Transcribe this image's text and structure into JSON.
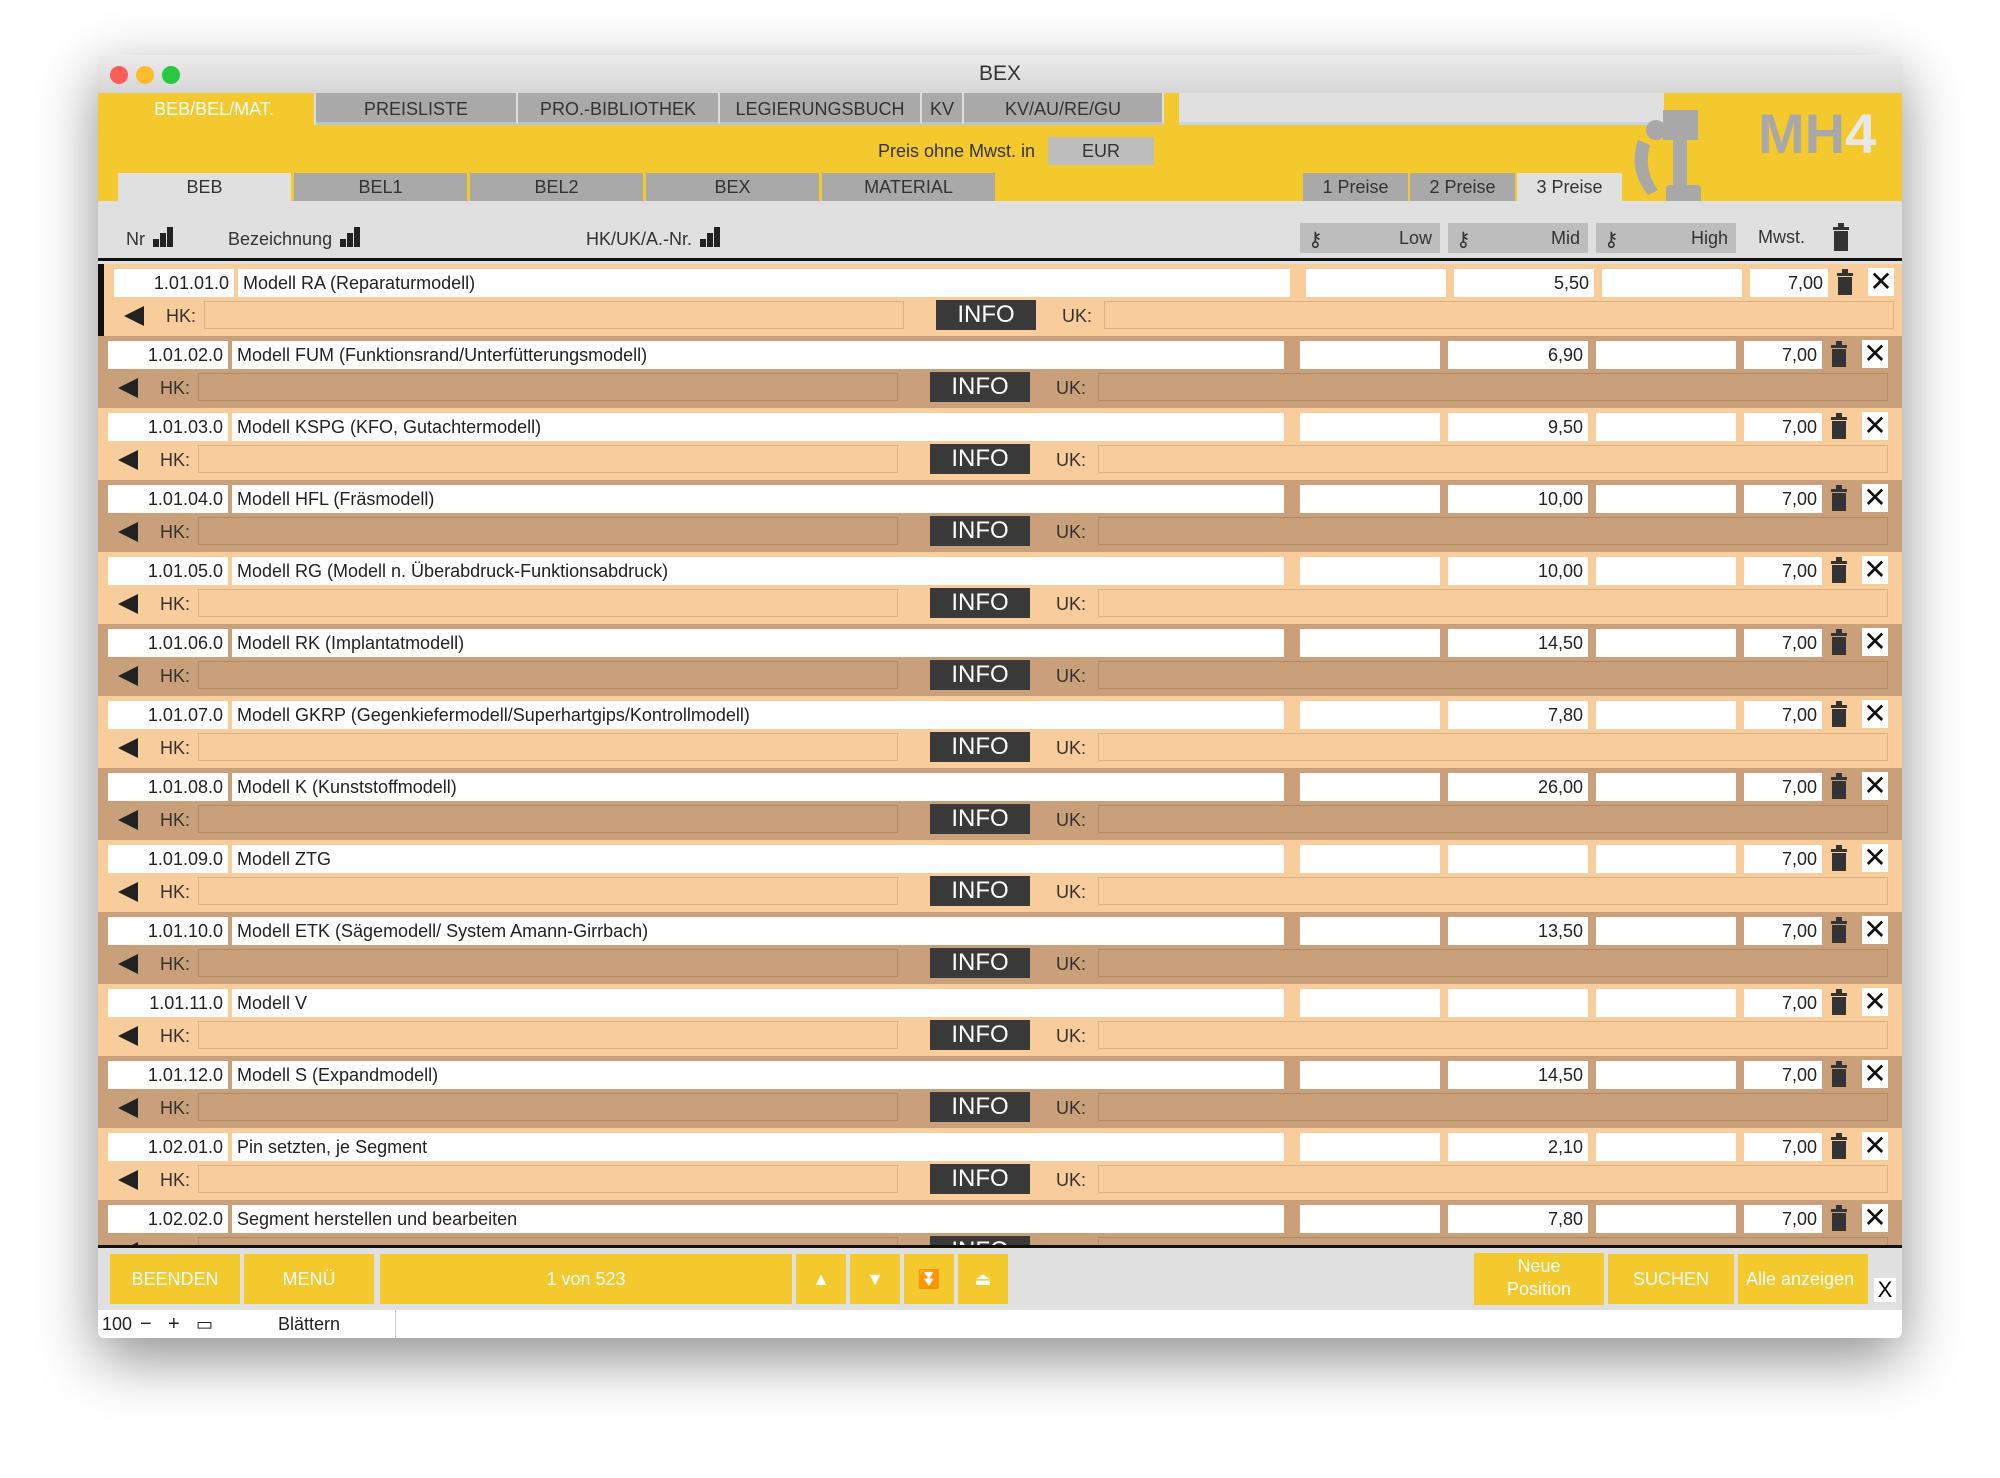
{
  "window": {
    "title": "BEX"
  },
  "top_tabs": [
    {
      "label": "BEB/BEL/MAT.",
      "active": true
    },
    {
      "label": "PREISLISTE"
    },
    {
      "label": "PRO.-BIBLIOTHEK"
    },
    {
      "label": "LEGIERUNGSBUCH"
    },
    {
      "label": "KV"
    },
    {
      "label": "KV/AU/RE/GU"
    }
  ],
  "currency": {
    "label": "Preis ohne Mwst. in",
    "value": "EUR"
  },
  "sub_tabs": [
    {
      "label": "BEB",
      "active": true
    },
    {
      "label": "BEL1"
    },
    {
      "label": "BEL2"
    },
    {
      "label": "BEX"
    },
    {
      "label": "MATERIAL"
    }
  ],
  "price_tabs": [
    {
      "label": "1 Preise"
    },
    {
      "label": "2 Preise"
    },
    {
      "label": "3 Preise",
      "active": true
    }
  ],
  "logo": "MH4",
  "header": {
    "nr": "Nr",
    "bezeichnung": "Bezeichnung",
    "hk": "HK/UK/A.-Nr.",
    "low": "Low",
    "mid": "Mid",
    "high": "High",
    "mwst": "Mwst."
  },
  "row_labels": {
    "hk": "HK:",
    "uk": "UK:",
    "info": "INFO"
  },
  "colors": {
    "accent": "#f3c92e",
    "row_odd": "#f8cc9b",
    "row_even": "#c9a07a"
  },
  "rows": [
    {
      "nr": "1.01.01.0",
      "name": "Modell RA (Reparaturmodell)",
      "low": "",
      "mid": "5,50",
      "high": "",
      "mwst": "7,00"
    },
    {
      "nr": "1.01.02.0",
      "name": "Modell FUM (Funktionsrand/Unterfütterungsmodell)",
      "low": "",
      "mid": "6,90",
      "high": "",
      "mwst": "7,00"
    },
    {
      "nr": "1.01.03.0",
      "name": "Modell KSPG (KFO, Gutachtermodell)",
      "low": "",
      "mid": "9,50",
      "high": "",
      "mwst": "7,00"
    },
    {
      "nr": "1.01.04.0",
      "name": "Modell HFL (Fräsmodell)",
      "low": "",
      "mid": "10,00",
      "high": "",
      "mwst": "7,00"
    },
    {
      "nr": "1.01.05.0",
      "name": "Modell RG (Modell n. Überabdruck-Funktionsabdruck)",
      "low": "",
      "mid": "10,00",
      "high": "",
      "mwst": "7,00"
    },
    {
      "nr": "1.01.06.0",
      "name": "Modell RK (Implantatmodell)",
      "low": "",
      "mid": "14,50",
      "high": "",
      "mwst": "7,00"
    },
    {
      "nr": "1.01.07.0",
      "name": "Modell GKRP (Gegenkiefermodell/Superhartgips/Kontrollmodell)",
      "low": "",
      "mid": "7,80",
      "high": "",
      "mwst": "7,00"
    },
    {
      "nr": "1.01.08.0",
      "name": "Modell K (Kunststoffmodell)",
      "low": "",
      "mid": "26,00",
      "high": "",
      "mwst": "7,00"
    },
    {
      "nr": "1.01.09.0",
      "name": "Modell ZTG",
      "low": "",
      "mid": "",
      "high": "",
      "mwst": "7,00"
    },
    {
      "nr": "1.01.10.0",
      "name": "Modell ETK (Sägemodell/ System Amann-Girrbach)",
      "low": "",
      "mid": "13,50",
      "high": "",
      "mwst": "7,00"
    },
    {
      "nr": "1.01.11.0",
      "name": "Modell V",
      "low": "",
      "mid": "",
      "high": "",
      "mwst": "7,00"
    },
    {
      "nr": "1.01.12.0",
      "name": "Modell S (Expandmodell)",
      "low": "",
      "mid": "14,50",
      "high": "",
      "mwst": "7,00"
    },
    {
      "nr": "1.02.01.0",
      "name": "Pin setzten, je Segment",
      "low": "",
      "mid": "2,10",
      "high": "",
      "mwst": "7,00"
    },
    {
      "nr": "1.02.02.0",
      "name": "Segment herstellen und bearbeiten",
      "low": "",
      "mid": "7,80",
      "high": "",
      "mwst": "7,00"
    }
  ],
  "bottom": {
    "beenden": "BEENDEN",
    "menu": "MENÜ",
    "record": "1 von 523",
    "neue_line1": "Neue",
    "neue_line2": "Position",
    "suchen": "SUCHEN",
    "alle": "Alle anzeigen",
    "close": "X"
  },
  "status": {
    "zoom": "100",
    "mode": "Blättern"
  }
}
